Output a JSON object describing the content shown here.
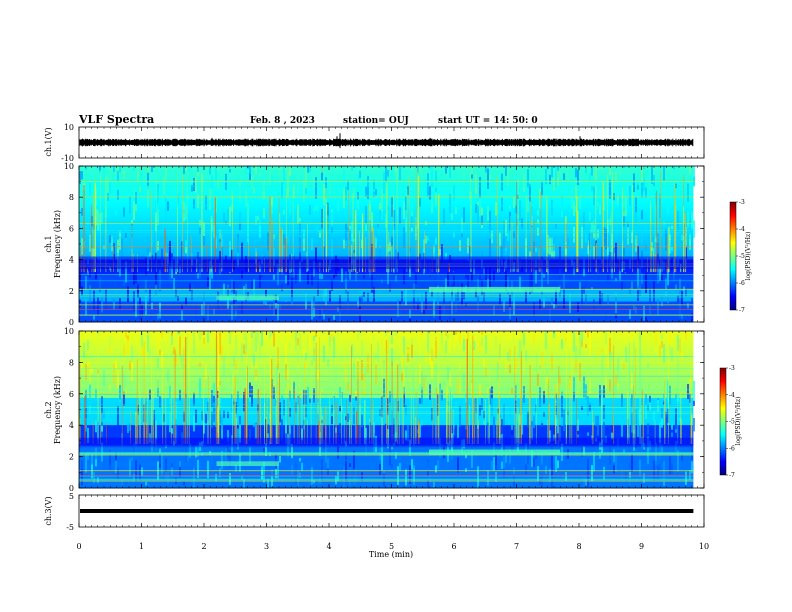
{
  "header": {
    "title": "VLF Spectra",
    "date": "Feb. 8 , 2023",
    "station": "station= OUJ",
    "start": "start UT = 14: 50: 0"
  },
  "chart_data": [
    {
      "type": "line",
      "panel": "waveform-ch1",
      "ylabel": "ch.1(V)",
      "ylim": [
        -10,
        10
      ],
      "yticks": [
        "10",
        "-10"
      ],
      "baseline": 0
    },
    {
      "type": "heatmap",
      "panel": "spectrogram-ch1",
      "ylabel": "ch.1\nFrequency (kHz)",
      "ylabel_line1": "ch.1",
      "ylabel_line2": "Frequency (kHz)",
      "ylim": [
        0,
        10
      ],
      "yticks": [
        "0",
        "2",
        "4",
        "6",
        "8",
        "10"
      ],
      "colorbar": {
        "label": "log(PSD)(V²/Hz)",
        "range": [
          -7,
          -3
        ],
        "ticks": [
          "-3",
          "-4",
          "-5",
          "-6",
          "-7"
        ]
      }
    },
    {
      "type": "heatmap",
      "panel": "spectrogram-ch2",
      "ylabel_line1": "ch.2",
      "ylabel_line2": "Frequency (kHz)",
      "ylim": [
        0,
        10
      ],
      "yticks": [
        "0",
        "2",
        "4",
        "6",
        "8",
        "10"
      ],
      "colorbar": {
        "label": "log(PSD)(V²/Hz)",
        "range": [
          -7,
          -3
        ],
        "ticks": [
          "-3",
          "-4",
          "-5",
          "-6",
          "-7"
        ]
      }
    },
    {
      "type": "line",
      "panel": "waveform-ch3",
      "ylabel": "ch.3(V)",
      "ylim": [
        -5,
        5
      ],
      "yticks": [
        "5",
        "-5"
      ],
      "baseline": 0
    }
  ],
  "xaxis": {
    "label": "Time (min)",
    "range": [
      0,
      10
    ],
    "ticks": [
      "0",
      "1",
      "2",
      "3",
      "4",
      "5",
      "6",
      "7",
      "8",
      "9",
      "10"
    ],
    "data_end": 9.83
  },
  "colors": {
    "frame": "#000000",
    "jet_low": "#00007f",
    "jet_high": "#7f0000"
  }
}
